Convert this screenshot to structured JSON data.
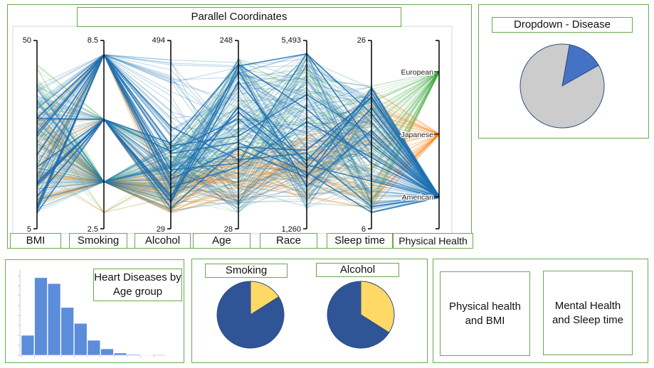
{
  "parallel": {
    "title": "Parallel Coordinates",
    "axes": [
      {
        "label": "BMI",
        "top": "50",
        "bottom": "5"
      },
      {
        "label": "Smoking",
        "top": "8.5",
        "bottom": "2.5"
      },
      {
        "label": "Alcohol",
        "top": "494",
        "bottom": "29"
      },
      {
        "label": "Age",
        "top": "248",
        "bottom": "28"
      },
      {
        "label": "Race",
        "top": "5,493",
        "bottom": "1,260"
      },
      {
        "label": "Sleep time",
        "top": "26",
        "bottom": "6"
      },
      {
        "label": "Physical Health",
        "top": "",
        "bottom": ""
      }
    ],
    "categories": [
      "European",
      "Japanese",
      "American"
    ],
    "colors": {
      "European": "#2ca02c",
      "Japanese": "#ff7f0e",
      "American": "#1f77b4"
    }
  },
  "dropdown": {
    "title": "Dropdown - Disease",
    "pie": {
      "values": [
        14,
        86
      ],
      "colors": [
        "#4472c4",
        "#cccccc"
      ]
    }
  },
  "histogram": {
    "title": "Heart Diseases by Age group",
    "values": [
      1.0,
      3.9,
      3.6,
      2.4,
      1.6,
      0.75,
      0.32,
      0.11,
      0.04,
      0.02
    ],
    "color": "#5b8ddb"
  },
  "smoking_pie": {
    "label": "Smoking",
    "values": [
      16,
      84
    ],
    "colors": [
      "#ffd966",
      "#2f5597"
    ]
  },
  "alcohol_pie": {
    "label": "Alcohol",
    "values": [
      34,
      66
    ],
    "colors": [
      "#ffd966",
      "#2f5597"
    ]
  },
  "placeholders": {
    "physical_bmi": "Physical health and BMI",
    "mental_sleep": "Mental Health and Sleep time"
  },
  "chart_data": [
    {
      "type": "parallel-coordinates",
      "title": "Parallel Coordinates",
      "dimensions": [
        "BMI",
        "Smoking",
        "Alcohol",
        "Age",
        "Race",
        "Sleep time",
        "Physical Health"
      ],
      "ranges": {
        "BMI": [
          5,
          50
        ],
        "Smoking": [
          2.5,
          8.5
        ],
        "Alcohol": [
          29,
          494
        ],
        "Age": [
          28,
          248
        ],
        "Race": [
          1260,
          5493
        ],
        "Sleep time": [
          6,
          26
        ]
      },
      "categories": [
        "European",
        "Japanese",
        "American"
      ]
    },
    {
      "type": "pie",
      "title": "Dropdown - Disease",
      "values": [
        14,
        86
      ]
    },
    {
      "type": "bar",
      "title": "Heart Diseases by Age group",
      "values": [
        1.0,
        3.9,
        3.6,
        2.4,
        1.6,
        0.75,
        0.32,
        0.11,
        0.04,
        0.02
      ]
    },
    {
      "type": "pie",
      "title": "Smoking",
      "values": [
        16,
        84
      ]
    },
    {
      "type": "pie",
      "title": "Alcohol",
      "values": [
        34,
        66
      ]
    }
  ]
}
